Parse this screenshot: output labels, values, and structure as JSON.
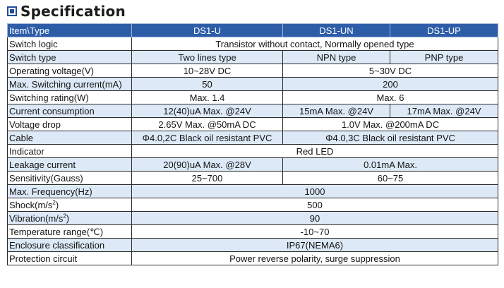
{
  "title": "Specification",
  "table": {
    "header": [
      "Item\\Type",
      "DS1-U",
      "DS1-UN",
      "DS1-UP"
    ],
    "rows": {
      "switch_logic": {
        "label": "Switch logic",
        "value": "Transistor without contact, Normally opened type"
      },
      "switch_type": {
        "label": "Switch type",
        "u": "Two lines type",
        "un": "NPN type",
        "up": "PNP type"
      },
      "operating_voltage": {
        "label": "Operating voltage(V)",
        "u": "10~28V DC",
        "unup": "5~30V DC"
      },
      "max_switching_current": {
        "label": "Max. Switching current(mA)",
        "u": "50",
        "unup": "200"
      },
      "switching_rating": {
        "label": "Switching rating(W)",
        "u": "Max. 1.4",
        "unup": "Max. 6"
      },
      "current_consumption": {
        "label": "Current consumption",
        "u": "12(40)uA Max. @24V",
        "un": "15mA Max. @24V",
        "up": "17mA Max. @24V"
      },
      "voltage_drop": {
        "label": "Voltage drop",
        "u": "2.65V Max. @50mA DC",
        "unup": "1.0V Max. @200mA DC"
      },
      "cable": {
        "label": "Cable",
        "u": "Φ4.0,2C Black oil resistant PVC",
        "unup": "Φ4.0,3C Black oil resistant PVC"
      },
      "indicator": {
        "label": "Indicator",
        "value": "Red LED"
      },
      "leakage_current": {
        "label": "Leakage current",
        "u": "20(90)uA Max. @28V",
        "unup": "0.01mA Max."
      },
      "sensitivity": {
        "label": "Sensitivity(Gauss)",
        "u": "25~700",
        "unup": "60~75"
      },
      "max_frequency": {
        "label": "Max. Frequency(Hz)",
        "value": "1000"
      },
      "shock": {
        "label_main": "Shock(m/s",
        "label_sup": "2",
        "label_end": ")",
        "value": "500"
      },
      "vibration": {
        "label_main": "Vibration(m/s",
        "label_sup": "2",
        "label_end": ")",
        "value": "90"
      },
      "temperature_range": {
        "label": "Temperature range(℃)",
        "value": "-10~70"
      },
      "enclosure": {
        "label": "Enclosure classification",
        "value": "IP67(NEMA6)"
      },
      "protection_circuit": {
        "label": "Protection circuit",
        "value": "Power reverse polarity, surge suppression"
      }
    }
  },
  "colors": {
    "header_bg": "#2e5da8",
    "alt_row_bg": "#dde9f6",
    "icon": "#1f4e9c"
  }
}
